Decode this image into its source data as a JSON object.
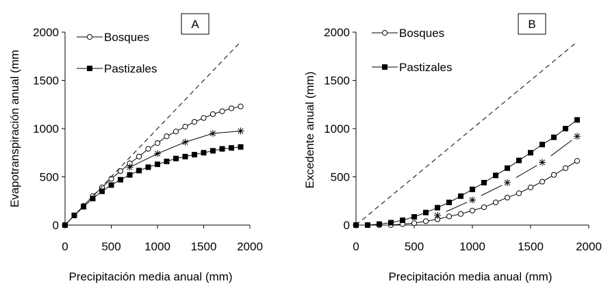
{
  "chart_data": [
    {
      "type": "line",
      "panel_label": "A",
      "xlabel": "Precipitación media anual (mm)",
      "ylabel": "Evapotranspiración anual (mm",
      "xlim": [
        0,
        2000
      ],
      "ylim": [
        0,
        2000
      ],
      "xticks": [
        "0",
        "500",
        "1000",
        "1500",
        "2000"
      ],
      "yticks": [
        "0",
        "500",
        "1000",
        "1500",
        "2000"
      ],
      "legend": [
        "Bosques",
        "Pastizales"
      ],
      "series": [
        {
          "name": "Bosques",
          "marker": "circle-open",
          "x": [
            0,
            100,
            200,
            300,
            400,
            500,
            600,
            700,
            800,
            900,
            1000,
            1100,
            1200,
            1300,
            1400,
            1500,
            1600,
            1700,
            1800,
            1900
          ],
          "y": [
            0,
            100,
            200,
            300,
            390,
            480,
            560,
            640,
            710,
            790,
            850,
            920,
            970,
            1020,
            1070,
            1110,
            1150,
            1180,
            1210,
            1230
          ]
        },
        {
          "name": "Pastizales",
          "marker": "square-filled",
          "x": [
            0,
            100,
            200,
            300,
            400,
            500,
            600,
            700,
            800,
            900,
            1000,
            1100,
            1200,
            1300,
            1400,
            1500,
            1600,
            1700,
            1800,
            1900
          ],
          "y": [
            0,
            100,
            190,
            275,
            350,
            415,
            470,
            520,
            565,
            600,
            630,
            660,
            690,
            710,
            730,
            750,
            770,
            790,
            800,
            810
          ]
        },
        {
          "name": "",
          "marker": "asterisk",
          "x": [
            700,
            1000,
            1300,
            1600,
            1900
          ],
          "y": [
            600,
            740,
            860,
            950,
            975
          ]
        },
        {
          "name": "",
          "marker": "none",
          "style": "dashed",
          "x": [
            0,
            1900
          ],
          "y": [
            0,
            1900
          ]
        }
      ]
    },
    {
      "type": "line",
      "panel_label": "B",
      "xlabel": "Precipitación media anual (mm)",
      "ylabel": "Excedente anual (mm)",
      "xlim": [
        0,
        2000
      ],
      "ylim": [
        0,
        2000
      ],
      "xticks": [
        "0",
        "500",
        "1000",
        "1500",
        "2000"
      ],
      "yticks": [
        "0",
        "500",
        "1000",
        "1500",
        "2000"
      ],
      "legend": [
        "Bosques",
        "Pastizales"
      ],
      "series": [
        {
          "name": "Bosques",
          "marker": "circle-open",
          "x": [
            0,
            100,
            200,
            300,
            400,
            500,
            600,
            700,
            800,
            900,
            1000,
            1100,
            1200,
            1300,
            1400,
            1500,
            1600,
            1700,
            1800,
            1900
          ],
          "y": [
            0,
            0,
            0,
            0,
            10,
            20,
            40,
            60,
            90,
            115,
            150,
            185,
            235,
            285,
            330,
            390,
            450,
            520,
            590,
            665
          ]
        },
        {
          "name": "Pastizales",
          "marker": "square-filled",
          "x": [
            0,
            100,
            200,
            300,
            400,
            500,
            600,
            700,
            800,
            900,
            1000,
            1100,
            1200,
            1300,
            1400,
            1500,
            1600,
            1700,
            1800,
            1900
          ],
          "y": [
            0,
            0,
            10,
            25,
            50,
            85,
            130,
            180,
            235,
            300,
            370,
            440,
            515,
            590,
            670,
            750,
            835,
            910,
            1000,
            1090
          ]
        },
        {
          "name": "",
          "marker": "asterisk",
          "segmented": true,
          "x": [
            700,
            1000,
            1300,
            1600,
            1900
          ],
          "y": [
            100,
            260,
            440,
            650,
            920
          ]
        },
        {
          "name": "",
          "marker": "none",
          "style": "dashed",
          "x": [
            0,
            1900
          ],
          "y": [
            0,
            1900
          ]
        }
      ]
    }
  ]
}
